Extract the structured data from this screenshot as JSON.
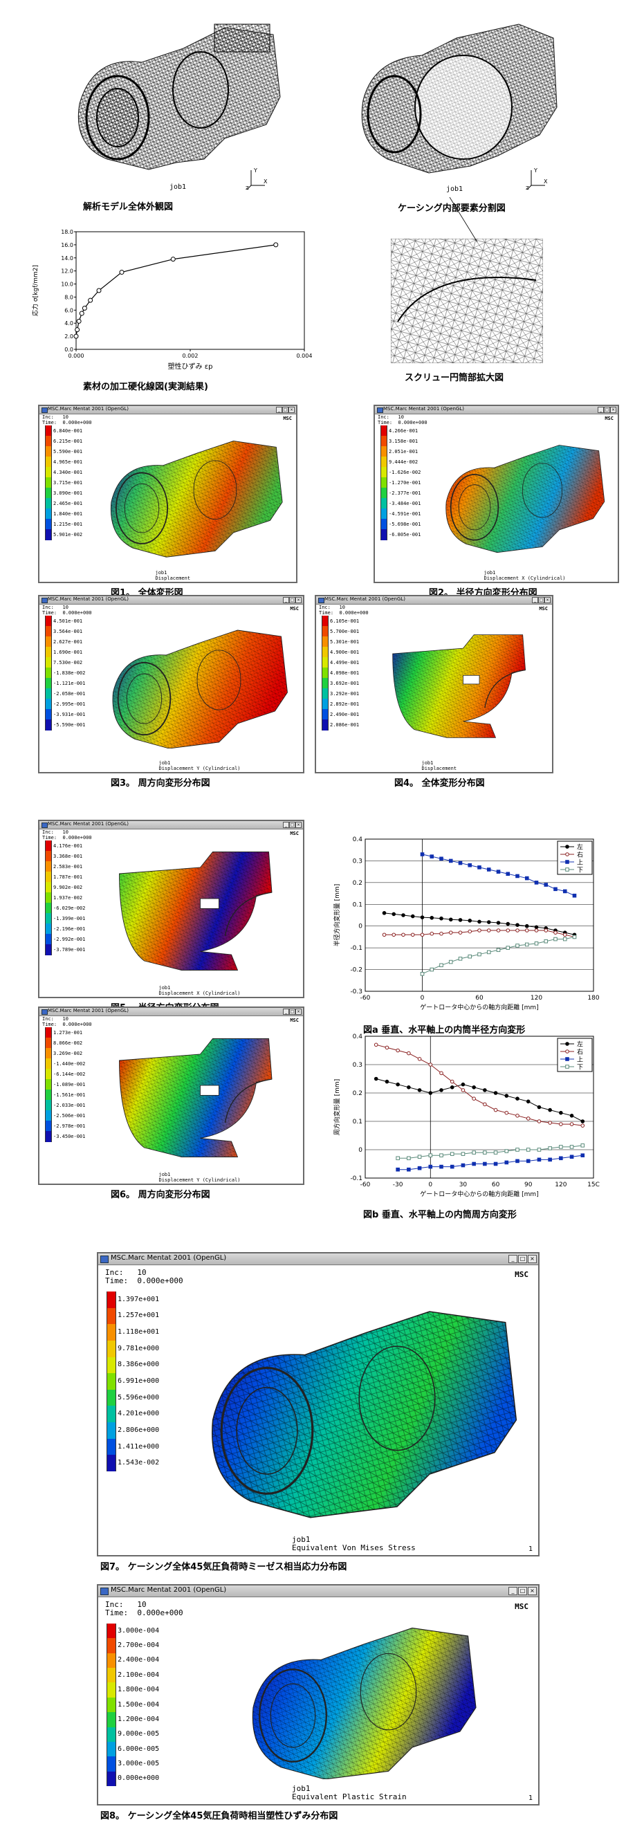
{
  "top": {
    "model_job": "job1",
    "model_caption": "解析モデル全体外観図",
    "section_job": "job1",
    "section_caption": "ケーシング内部要素分割図",
    "zoom_caption": "スクリュー円筒部拡大図",
    "hardening_caption": "素材の加工硬化線図(実測結果)"
  },
  "hardening_chart": {
    "ylabel": "応力 σ[kgf/mm2]",
    "xlabel": "塑性ひずみ εp",
    "yticks": [
      "0.0",
      "2.0",
      "4.0",
      "6.0",
      "8.0",
      "10.0",
      "12.0",
      "14.0",
      "16.0",
      "18.0"
    ],
    "xticks": [
      "0.000",
      "0.002",
      "0.004"
    ]
  },
  "titlebar_small": "MSC.Marc Mentat 2001 (OpenGL)",
  "inc_small": "Inc:   10\nTime:  0.000e+000",
  "msc_logo": "MSC",
  "fig1": {
    "legend": [
      "6.840e-001",
      "6.215e-001",
      "5.590e-001",
      "4.965e-001",
      "4.340e-001",
      "3.715e-001",
      "3.090e-001",
      "2.465e-001",
      "1.840e-001",
      "1.215e-001",
      "5.901e-002"
    ],
    "footer": "job1\nDisplacement",
    "caption": "図1。 全体変形図"
  },
  "fig2": {
    "legend": [
      "4.266e-001",
      "3.158e-001",
      "2.051e-001",
      "9.444e-002",
      "-1.626e-002",
      "-1.270e-001",
      "-2.377e-001",
      "-3.484e-001",
      "-4.591e-001",
      "-5.698e-001",
      "-6.805e-001"
    ],
    "footer": "job1\nDisplacement X (Cylindrical)",
    "caption": "図2。 半径方向変形分布図"
  },
  "fig3": {
    "legend": [
      "4.501e-001",
      "3.564e-001",
      "2.627e-001",
      "1.690e-001",
      "7.530e-002",
      "-1.838e-002",
      "-1.121e-001",
      "-2.058e-001",
      "-2.995e-001",
      "-3.931e-001",
      "-5.590e-001"
    ],
    "footer": "job1\nDisplacement Y (Cylindrical)",
    "caption": "図3。 周方向変形分布図"
  },
  "fig4": {
    "legend": [
      "6.105e-001",
      "5.700e-001",
      "5.301e-001",
      "4.900e-001",
      "4.499e-001",
      "4.098e-001",
      "3.692e-001",
      "3.292e-001",
      "2.892e-001",
      "2.490e-001",
      "2.086e-001"
    ],
    "footer": "job1\nDisplacement",
    "caption": "図4。 全体変形分布図"
  },
  "fig5": {
    "legend": [
      "4.176e-001",
      "3.368e-001",
      "2.583e-001",
      "1.787e-001",
      "9.902e-002",
      "1.937e-002",
      "-6.029e-002",
      "-1.399e-001",
      "-2.196e-001",
      "-2.992e-001",
      "-3.789e-001"
    ],
    "footer": "job1\nDisplacement X (Cylindrical)",
    "caption": "図5。 半径方向変形分布図"
  },
  "fig6": {
    "legend": [
      "1.273e-001",
      "8.066e-002",
      "3.269e-002",
      "-1.440e-002",
      "-6.144e-002",
      "-1.089e-001",
      "-1.561e-001",
      "-2.033e-001",
      "-2.506e-001",
      "-2.978e-001",
      "-3.450e-001"
    ],
    "footer": "job1\nDisplacement Y (Cylindrical)",
    "caption": "図6。 周方向変形分布図"
  },
  "chart_data": [
    {
      "type": "line",
      "title": "図a 垂直、水平軸上の内筒半径方向変形",
      "xlabel": "ゲートロータ中心からの軸方向距離 [mm]",
      "ylabel": "半径方向変形量 [mm]",
      "xlim": [
        -60,
        180
      ],
      "ylim": [
        -0.3,
        0.4
      ],
      "xticks": [
        "-60",
        "0",
        "60",
        "120",
        "180"
      ],
      "yticks": [
        "0.4",
        "0.3",
        "0.2",
        "0.1",
        "0",
        "-0.1",
        "-0.2",
        "-0.3"
      ],
      "legend": [
        "左",
        "右",
        "上",
        "下"
      ],
      "x": [
        -40,
        -30,
        -20,
        -10,
        0,
        10,
        20,
        30,
        40,
        50,
        60,
        70,
        80,
        90,
        100,
        110,
        120,
        130,
        140,
        150,
        160
      ],
      "series": [
        {
          "name": "左",
          "values": [
            0.06,
            0.055,
            0.05,
            0.045,
            0.04,
            0.038,
            0.035,
            0.03,
            0.028,
            0.025,
            0.02,
            0.018,
            0.015,
            0.01,
            0.005,
            0.0,
            -0.005,
            -0.01,
            -0.02,
            -0.03,
            -0.04
          ]
        },
        {
          "name": "右",
          "values": [
            -0.04,
            -0.04,
            -0.04,
            -0.04,
            -0.04,
            -0.035,
            -0.035,
            -0.03,
            -0.03,
            -0.025,
            -0.02,
            -0.02,
            -0.02,
            -0.02,
            -0.02,
            -0.02,
            -0.02,
            -0.02,
            -0.03,
            -0.04,
            -0.05
          ]
        },
        {
          "name": "上",
          "values": [
            null,
            null,
            null,
            null,
            0.33,
            0.32,
            0.31,
            0.3,
            0.29,
            0.28,
            0.27,
            0.26,
            0.25,
            0.24,
            0.23,
            0.22,
            0.2,
            0.19,
            0.17,
            0.16,
            0.14
          ]
        },
        {
          "name": "下",
          "values": [
            null,
            null,
            null,
            null,
            -0.22,
            -0.2,
            -0.18,
            -0.165,
            -0.15,
            -0.14,
            -0.13,
            -0.12,
            -0.11,
            -0.1,
            -0.09,
            -0.085,
            -0.08,
            -0.07,
            -0.06,
            -0.06,
            -0.05
          ]
        }
      ]
    },
    {
      "type": "line",
      "title": "図b 垂直、水平軸上の内筒周方向変形",
      "xlabel": "ゲートロータ中心からの軸方向距離 [mm]",
      "ylabel": "周方向変形量 [mm]",
      "xlim": [
        -60,
        150
      ],
      "ylim": [
        -0.1,
        0.4
      ],
      "xticks": [
        "-60",
        "-30",
        "0",
        "30",
        "60",
        "90",
        "120",
        "15C"
      ],
      "yticks": [
        "0.4",
        "0.3",
        "0.2",
        "0.1",
        "0",
        "-0.1"
      ],
      "legend": [
        "左",
        "右",
        "上",
        "下"
      ],
      "x": [
        -50,
        -40,
        -30,
        -20,
        -10,
        0,
        10,
        20,
        30,
        40,
        50,
        60,
        70,
        80,
        90,
        100,
        110,
        120,
        130,
        140
      ],
      "series": [
        {
          "name": "左",
          "values": [
            0.25,
            0.24,
            0.23,
            0.22,
            0.21,
            0.2,
            0.21,
            0.22,
            0.23,
            0.22,
            0.21,
            0.2,
            0.19,
            0.18,
            0.17,
            0.15,
            0.14,
            0.13,
            0.12,
            0.1
          ]
        },
        {
          "name": "右",
          "values": [
            0.37,
            0.36,
            0.35,
            0.34,
            0.32,
            0.3,
            0.27,
            0.24,
            0.21,
            0.18,
            0.16,
            0.14,
            0.13,
            0.12,
            0.11,
            0.1,
            0.095,
            0.09,
            0.09,
            0.085
          ]
        },
        {
          "name": "上",
          "values": [
            null,
            null,
            -0.07,
            -0.07,
            -0.065,
            -0.06,
            -0.06,
            -0.06,
            -0.055,
            -0.05,
            -0.05,
            -0.05,
            -0.045,
            -0.04,
            -0.04,
            -0.035,
            -0.035,
            -0.03,
            -0.025,
            -0.02
          ]
        },
        {
          "name": "下",
          "values": [
            null,
            null,
            -0.03,
            -0.03,
            -0.025,
            -0.02,
            -0.02,
            -0.015,
            -0.015,
            -0.01,
            -0.01,
            -0.01,
            -0.005,
            0.0,
            0.0,
            0.0,
            0.005,
            0.01,
            0.01,
            0.015
          ]
        }
      ]
    }
  ],
  "fig7": {
    "titlebar": "MSC.Marc Mentat 2001 (OpenGL)",
    "inc": "Inc:   10\nTime:  0.000e+000",
    "legend": [
      "1.397e+001",
      "1.257e+001",
      "1.118e+001",
      "9.781e+000",
      "8.386e+000",
      "6.991e+000",
      "5.596e+000",
      "4.201e+000",
      "2.806e+000",
      "1.411e+000",
      "1.543e-002"
    ],
    "footer": "job1\nEquivalent Von Mises Stress",
    "pageno": "1",
    "caption": "図7。 ケーシング全体45気圧負荷時ミーゼス相当応力分布図"
  },
  "fig8": {
    "titlebar": "MSC.Marc Mentat 2001 (OpenGL)",
    "inc": "Inc:   10\nTime:  0.000e+000",
    "legend": [
      "3.000e-004",
      "2.700e-004",
      "2.400e-004",
      "2.100e-004",
      "1.800e-004",
      "1.500e-004",
      "1.200e-004",
      "9.000e-005",
      "6.000e-005",
      "3.000e-005",
      "0.000e+000"
    ],
    "footer": "job1\nEquivalent Plastic Strain",
    "pageno": "1",
    "caption": "図8。 ケーシング全体45気圧負荷時相当塑性ひずみ分布図"
  },
  "colors": {
    "legend_scale": [
      "#e00000",
      "#f04a00",
      "#f89000",
      "#f0c800",
      "#d8e800",
      "#80e000",
      "#20d040",
      "#00c0a0",
      "#00a0e0",
      "#0050e0",
      "#1010b0"
    ],
    "series_left": "#000000",
    "series_right": "#8a2020",
    "series_up": "#1030b0",
    "series_down": "#5a8a7a"
  }
}
